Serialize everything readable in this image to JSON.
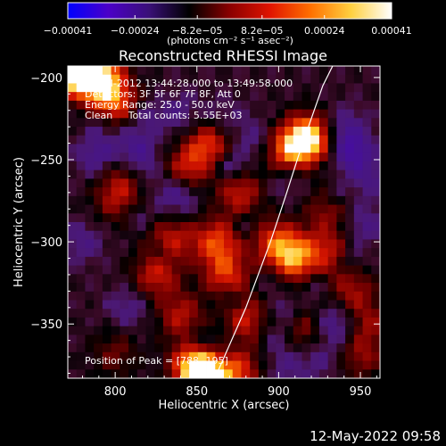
{
  "chart_data": {
    "type": "heatmap",
    "title": "Reconstructed RHESSI Image",
    "xlabel": "Heliocentric X (arcsec)",
    "ylabel": "Heliocentric Y (arcsec)",
    "xlim": [
      771,
      962
    ],
    "ylim": [
      -383,
      -193
    ],
    "x_ticks": [
      800,
      850,
      900,
      950
    ],
    "x_tick_labels": [
      "800",
      "850",
      "900",
      "950"
    ],
    "y_ticks": [
      -200,
      -250,
      -300,
      -350
    ],
    "y_tick_labels": [
      "−200",
      "−250",
      "−300",
      "−350"
    ],
    "colorbar": {
      "min": -0.00041,
      "max": 0.00041,
      "ticks": [
        -0.00041,
        -0.00024,
        -8.2e-05,
        8.2e-05,
        0.00024,
        0.00041
      ],
      "tick_labels": [
        "−0.00041",
        "−0.00024",
        "−8.2e−05",
        "8.2e−05",
        "0.00024",
        "0.00041"
      ],
      "unit_label": "(photons cm⁻² s⁻¹ asec⁻²)",
      "colors": [
        "#0000ff",
        "#4b00c8",
        "#3a1078",
        "#000000",
        "#8a0000",
        "#e01400",
        "#ff7000",
        "#ffd040",
        "#ffffff"
      ]
    },
    "annotations": [
      "12-Jul-2012 13:44:28.000 to 13:49:58.000",
      "Detectors: 3F 5F 6F 7F 8F, Att 0",
      "Energy Range: 25.0 - 50.0 keV",
      "Clean     Total counts: 5.55E+03"
    ],
    "peak_label": "Position of Peak = [788,-195]",
    "peak_position": [
      788,
      -195
    ],
    "limb_curve": {
      "x": [
        861,
        880,
        895,
        905,
        913,
        920,
        927,
        933
      ],
      "y": [
        -383,
        -340,
        -300,
        -270,
        -245,
        -225,
        -205,
        -193
      ]
    },
    "image_grid": {
      "cols": 36,
      "rows": 36
    },
    "hotspots": [
      {
        "x": 775,
        "y": -196,
        "value": 0.00041
      },
      {
        "x": 790,
        "y": -200,
        "value": 0.00035
      },
      {
        "x": 800,
        "y": -215,
        "value": 0.00022
      },
      {
        "x": 918,
        "y": -237,
        "value": 0.00038
      },
      {
        "x": 905,
        "y": -245,
        "value": 0.00022
      },
      {
        "x": 858,
        "y": -241,
        "value": 0.00024
      },
      {
        "x": 843,
        "y": -257,
        "value": 0.0002
      },
      {
        "x": 876,
        "y": -270,
        "value": 0.00018
      },
      {
        "x": 805,
        "y": -260,
        "value": 0.00014
      },
      {
        "x": 800,
        "y": -275,
        "value": 0.00012
      },
      {
        "x": 835,
        "y": -298,
        "value": 0.00016
      },
      {
        "x": 825,
        "y": -320,
        "value": 0.00018
      },
      {
        "x": 862,
        "y": -300,
        "value": 0.00022
      },
      {
        "x": 868,
        "y": -320,
        "value": 0.0002
      },
      {
        "x": 898,
        "y": -300,
        "value": 0.0002
      },
      {
        "x": 910,
        "y": -310,
        "value": 0.00026
      },
      {
        "x": 930,
        "y": -305,
        "value": 0.00015
      },
      {
        "x": 945,
        "y": -330,
        "value": 0.00014
      },
      {
        "x": 840,
        "y": -345,
        "value": 0.00016
      },
      {
        "x": 880,
        "y": -348,
        "value": 0.00018
      },
      {
        "x": 915,
        "y": -355,
        "value": 0.00014
      },
      {
        "x": 950,
        "y": -370,
        "value": 0.00012
      },
      {
        "x": 848,
        "y": -375,
        "value": 0.00026
      },
      {
        "x": 856,
        "y": -383,
        "value": 0.00034
      },
      {
        "x": 875,
        "y": -378,
        "value": 0.0002
      },
      {
        "x": 800,
        "y": -368,
        "value": 0.0001
      },
      {
        "x": 930,
        "y": -280,
        "value": 0.00012
      },
      {
        "x": 955,
        "y": -350,
        "value": 0.00012
      }
    ],
    "coldspots": [
      {
        "x": 838,
        "y": -222,
        "value": -8e-05
      },
      {
        "x": 865,
        "y": -226,
        "value": -7e-05
      },
      {
        "x": 885,
        "y": -238,
        "value": -8e-05
      },
      {
        "x": 812,
        "y": -238,
        "value": -9e-05
      },
      {
        "x": 790,
        "y": -248,
        "value": -0.00013
      },
      {
        "x": 815,
        "y": -253,
        "value": -0.00012
      },
      {
        "x": 838,
        "y": -270,
        "value": -0.00016
      },
      {
        "x": 867,
        "y": -252,
        "value": -8e-05
      },
      {
        "x": 905,
        "y": -262,
        "value": -7e-05
      },
      {
        "x": 945,
        "y": -245,
        "value": -0.00016
      },
      {
        "x": 940,
        "y": -230,
        "value": -9e-05
      },
      {
        "x": 955,
        "y": -262,
        "value": -8e-05
      },
      {
        "x": 780,
        "y": -300,
        "value": -8e-05
      },
      {
        "x": 952,
        "y": -290,
        "value": -9e-05
      },
      {
        "x": 900,
        "y": -355,
        "value": -8e-05
      },
      {
        "x": 935,
        "y": -350,
        "value": -0.00013
      },
      {
        "x": 925,
        "y": -370,
        "value": -8e-05
      },
      {
        "x": 808,
        "y": -340,
        "value": -8e-05
      },
      {
        "x": 865,
        "y": -365,
        "value": -6e-05
      },
      {
        "x": 905,
        "y": -375,
        "value": -7e-05
      }
    ],
    "darkspots": [
      {
        "x": 820,
        "y": -222
      },
      {
        "x": 872,
        "y": -255
      },
      {
        "x": 815,
        "y": -285
      },
      {
        "x": 828,
        "y": -308
      },
      {
        "x": 880,
        "y": -290
      },
      {
        "x": 895,
        "y": -325
      },
      {
        "x": 922,
        "y": -327
      },
      {
        "x": 870,
        "y": -335
      },
      {
        "x": 905,
        "y": -340
      },
      {
        "x": 850,
        "y": -360
      },
      {
        "x": 790,
        "y": -230
      },
      {
        "x": 945,
        "y": -310
      },
      {
        "x": 935,
        "y": -272
      }
    ]
  },
  "footer": {
    "timestamp": "12-May-2022 09:58"
  }
}
